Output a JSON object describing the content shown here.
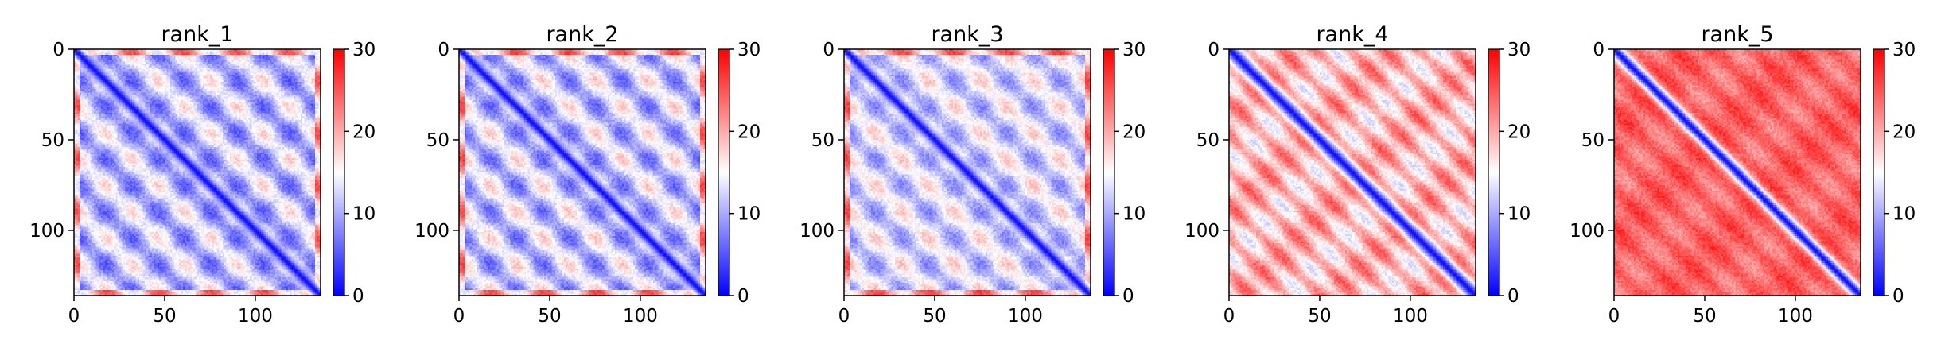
{
  "chart_data": [
    {
      "type": "heatmap",
      "title": "rank_1",
      "grid": false,
      "matrix_size": 136,
      "xlim": [
        0,
        136
      ],
      "ylim": [
        136,
        0
      ],
      "x_ticks": [
        0,
        50,
        100
      ],
      "y_ticks": [
        0,
        50,
        100
      ],
      "x_tick_labels": [
        "0",
        "50",
        "100"
      ],
      "y_tick_labels": [
        "0",
        "50",
        "100"
      ],
      "colorbar": {
        "range": [
          0,
          30
        ],
        "ticks": [
          0,
          10,
          20,
          30
        ],
        "tick_labels": [
          "0",
          "10",
          "20",
          "30"
        ],
        "colormap": "bwr"
      },
      "pattern": {
        "base": 11.5,
        "amplitude": 7,
        "period": 29,
        "phase": 17,
        "diag_width": 3.5,
        "diag_width2": 4.5
      }
    },
    {
      "type": "heatmap",
      "title": "rank_2",
      "grid": false,
      "matrix_size": 136,
      "xlim": [
        0,
        136
      ],
      "ylim": [
        136,
        0
      ],
      "x_ticks": [
        0,
        50,
        100
      ],
      "y_ticks": [
        0,
        50,
        100
      ],
      "x_tick_labels": [
        "0",
        "50",
        "100"
      ],
      "y_tick_labels": [
        "0",
        "50",
        "100"
      ],
      "colorbar": {
        "range": [
          0,
          30
        ],
        "ticks": [
          0,
          10,
          20,
          30
        ],
        "tick_labels": [
          "0",
          "10",
          "20",
          "30"
        ],
        "colormap": "bwr"
      },
      "pattern": {
        "base": 12,
        "amplitude": 7,
        "period": 29,
        "phase": 17,
        "diag_width": 3.5,
        "diag_width2": 4.5
      }
    },
    {
      "type": "heatmap",
      "title": "rank_3",
      "grid": false,
      "matrix_size": 136,
      "xlim": [
        0,
        136
      ],
      "ylim": [
        136,
        0
      ],
      "x_ticks": [
        0,
        50,
        100
      ],
      "y_ticks": [
        0,
        50,
        100
      ],
      "x_tick_labels": [
        "0",
        "50",
        "100"
      ],
      "y_tick_labels": [
        "0",
        "50",
        "100"
      ],
      "colorbar": {
        "range": [
          0,
          30
        ],
        "ticks": [
          0,
          10,
          20,
          30
        ],
        "tick_labels": [
          "0",
          "10",
          "20",
          "30"
        ],
        "colormap": "bwr"
      },
      "pattern": {
        "base": 13,
        "amplitude": 6,
        "period": 29,
        "phase": 17,
        "diag_width": 3.5,
        "diag_width2": 4.5
      }
    },
    {
      "type": "heatmap",
      "title": "rank_4",
      "grid": false,
      "matrix_size": 136,
      "xlim": [
        0,
        136
      ],
      "ylim": [
        136,
        0
      ],
      "x_ticks": [
        0,
        50,
        100
      ],
      "y_ticks": [
        0,
        50,
        100
      ],
      "x_tick_labels": [
        "0",
        "50",
        "100"
      ],
      "y_tick_labels": [
        "0",
        "50",
        "100"
      ],
      "colorbar": {
        "range": [
          0,
          30
        ],
        "ticks": [
          0,
          10,
          20,
          30
        ],
        "tick_labels": [
          "0",
          "10",
          "20",
          "30"
        ],
        "colormap": "bwr"
      },
      "pattern": {
        "base": 19,
        "amplitude": 6,
        "period": 19,
        "phase": 0,
        "diag_width": 4,
        "diag_width2": 5
      }
    },
    {
      "type": "heatmap",
      "title": "rank_5",
      "grid": false,
      "matrix_size": 136,
      "xlim": [
        0,
        136
      ],
      "ylim": [
        136,
        0
      ],
      "x_ticks": [
        0,
        50,
        100
      ],
      "y_ticks": [
        0,
        50,
        100
      ],
      "x_tick_labels": [
        "0",
        "50",
        "100"
      ],
      "y_tick_labels": [
        "0",
        "50",
        "100"
      ],
      "colorbar": {
        "range": [
          0,
          30
        ],
        "ticks": [
          0,
          10,
          20,
          30
        ],
        "tick_labels": [
          "0",
          "10",
          "20",
          "30"
        ],
        "colormap": "bwr"
      },
      "pattern": {
        "base": 24,
        "amplitude": 3,
        "period": 22,
        "phase": 0,
        "diag_width": 3,
        "diag_width2": 4
      }
    }
  ]
}
